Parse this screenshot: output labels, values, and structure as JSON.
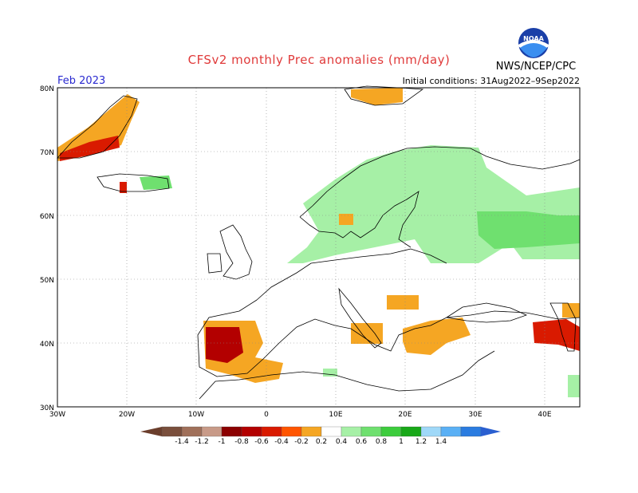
{
  "header": {
    "title": "CFSv2 monthly Prec anomalies (mm/day)",
    "month": "Feb 2023",
    "initial_conditions": "Initial conditions: 31Aug2022–9Sep2022",
    "org": "NWS/NCEP/CPC",
    "logo_text": "NOAA"
  },
  "map": {
    "lat_range": [
      30,
      80
    ],
    "lon_range": [
      -30,
      45
    ],
    "lat_labels": [
      "30N",
      "40N",
      "50N",
      "60N",
      "70N",
      "80N"
    ],
    "lon_labels": [
      "30W",
      "20W",
      "10W",
      "0",
      "10E",
      "20E",
      "30E",
      "40E"
    ],
    "gridlines": "dotted"
  },
  "colorbar": {
    "labels": [
      "-1.4",
      "-1.2",
      "-1",
      "-0.8",
      "-0.6",
      "-0.4",
      "-0.2",
      "0.2",
      "0.4",
      "0.6",
      "0.8",
      "1",
      "1.2",
      "1.4"
    ],
    "colors": [
      "#7a4f3c",
      "#a0705a",
      "#c89a88",
      "#8b0000",
      "#b30000",
      "#d91a00",
      "#ff5500",
      "#f5a623",
      "#ffffff",
      "#a6f0a6",
      "#6fe06f",
      "#3ccc3c",
      "#18a818",
      "#9fd8f8",
      "#5ab0f5",
      "#2a7ce0"
    ],
    "low_color": "#6b3e2c",
    "high_color": "#2a5fd0"
  }
}
